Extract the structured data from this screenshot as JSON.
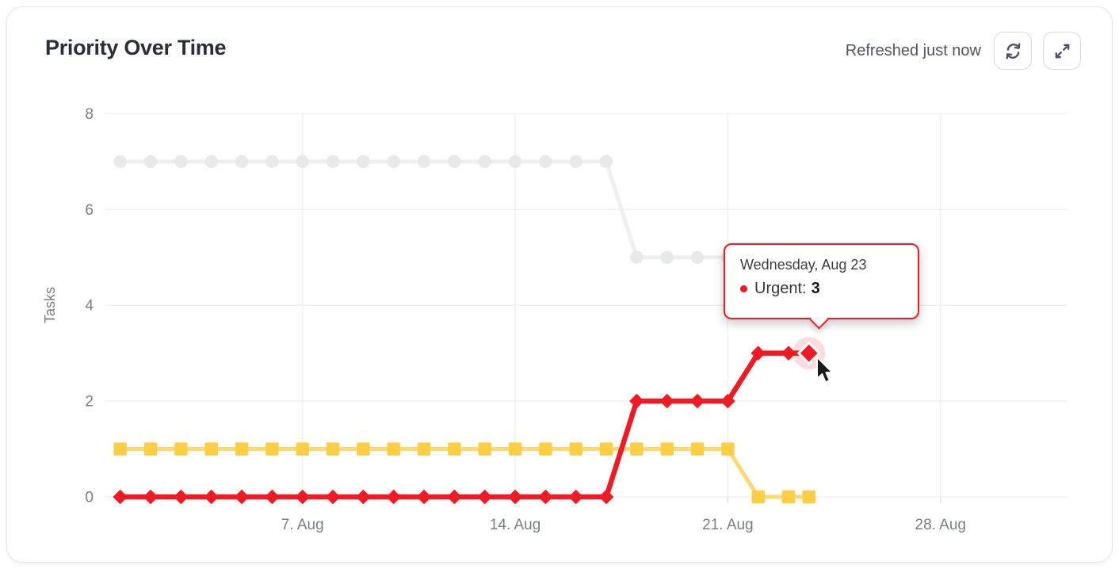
{
  "header": {
    "title": "Priority Over Time",
    "refreshed_label": "Refreshed just now",
    "refresh_button": "refresh",
    "expand_button": "expand"
  },
  "tooltip": {
    "title": "Wednesday, Aug 23",
    "series_label": "Urgent:",
    "value": "3",
    "accent_color": "#ee1b24"
  },
  "chart_data": {
    "type": "line",
    "title": "Priority Over Time",
    "xlabel": "",
    "ylabel": "Tasks",
    "ylim": [
      0,
      8
    ],
    "yticks": [
      0,
      2,
      4,
      6,
      8
    ],
    "xticks": [
      {
        "day": 6,
        "label": "7. Aug"
      },
      {
        "day": 13,
        "label": "14. Aug"
      },
      {
        "day": 20,
        "label": "21. Aug"
      },
      {
        "day": 27,
        "label": "28. Aug"
      }
    ],
    "x_days": [
      0,
      1,
      2,
      3,
      4,
      5,
      6,
      7,
      8,
      9,
      10,
      11,
      12,
      13,
      14,
      15,
      16,
      17,
      18,
      19,
      20,
      21,
      22,
      22.67
    ],
    "x_day_zero": "Aug 1",
    "grid": true,
    "legend": false,
    "series": [
      {
        "id": "no-priority",
        "name": "",
        "marker": "circle",
        "line_color": "#efeff1",
        "marker_color": "#e8e9eb",
        "line_width": 5,
        "values": [
          7,
          7,
          7,
          7,
          7,
          7,
          7,
          7,
          7,
          7,
          7,
          7,
          7,
          7,
          7,
          7,
          7,
          5,
          5,
          5,
          5,
          5,
          5,
          5
        ]
      },
      {
        "id": "yellow",
        "name": "",
        "marker": "square",
        "line_color": "#fbd973",
        "marker_color": "#fcce44",
        "line_width": 5,
        "values": [
          1,
          1,
          1,
          1,
          1,
          1,
          1,
          1,
          1,
          1,
          1,
          1,
          1,
          1,
          1,
          1,
          1,
          1,
          1,
          1,
          1,
          0,
          0,
          0
        ]
      },
      {
        "id": "urgent",
        "name": "Urgent",
        "marker": "diamond",
        "line_color": "#ee1b24",
        "marker_color": "#ee1b24",
        "line_width": 6.5,
        "values": [
          0,
          0,
          0,
          0,
          0,
          0,
          0,
          0,
          0,
          0,
          0,
          0,
          0,
          0,
          0,
          0,
          0,
          2,
          2,
          2,
          2,
          3,
          3,
          3
        ]
      }
    ],
    "highlight": {
      "series": "urgent",
      "index": 23,
      "value": 3,
      "date": "Wednesday, Aug 23"
    },
    "style": {
      "grid_color": "#f1f1f3",
      "axis_text_color": "#787e88",
      "halo_color": "rgba(238,27,36,0.15)",
      "tick_font_size": 19
    }
  }
}
